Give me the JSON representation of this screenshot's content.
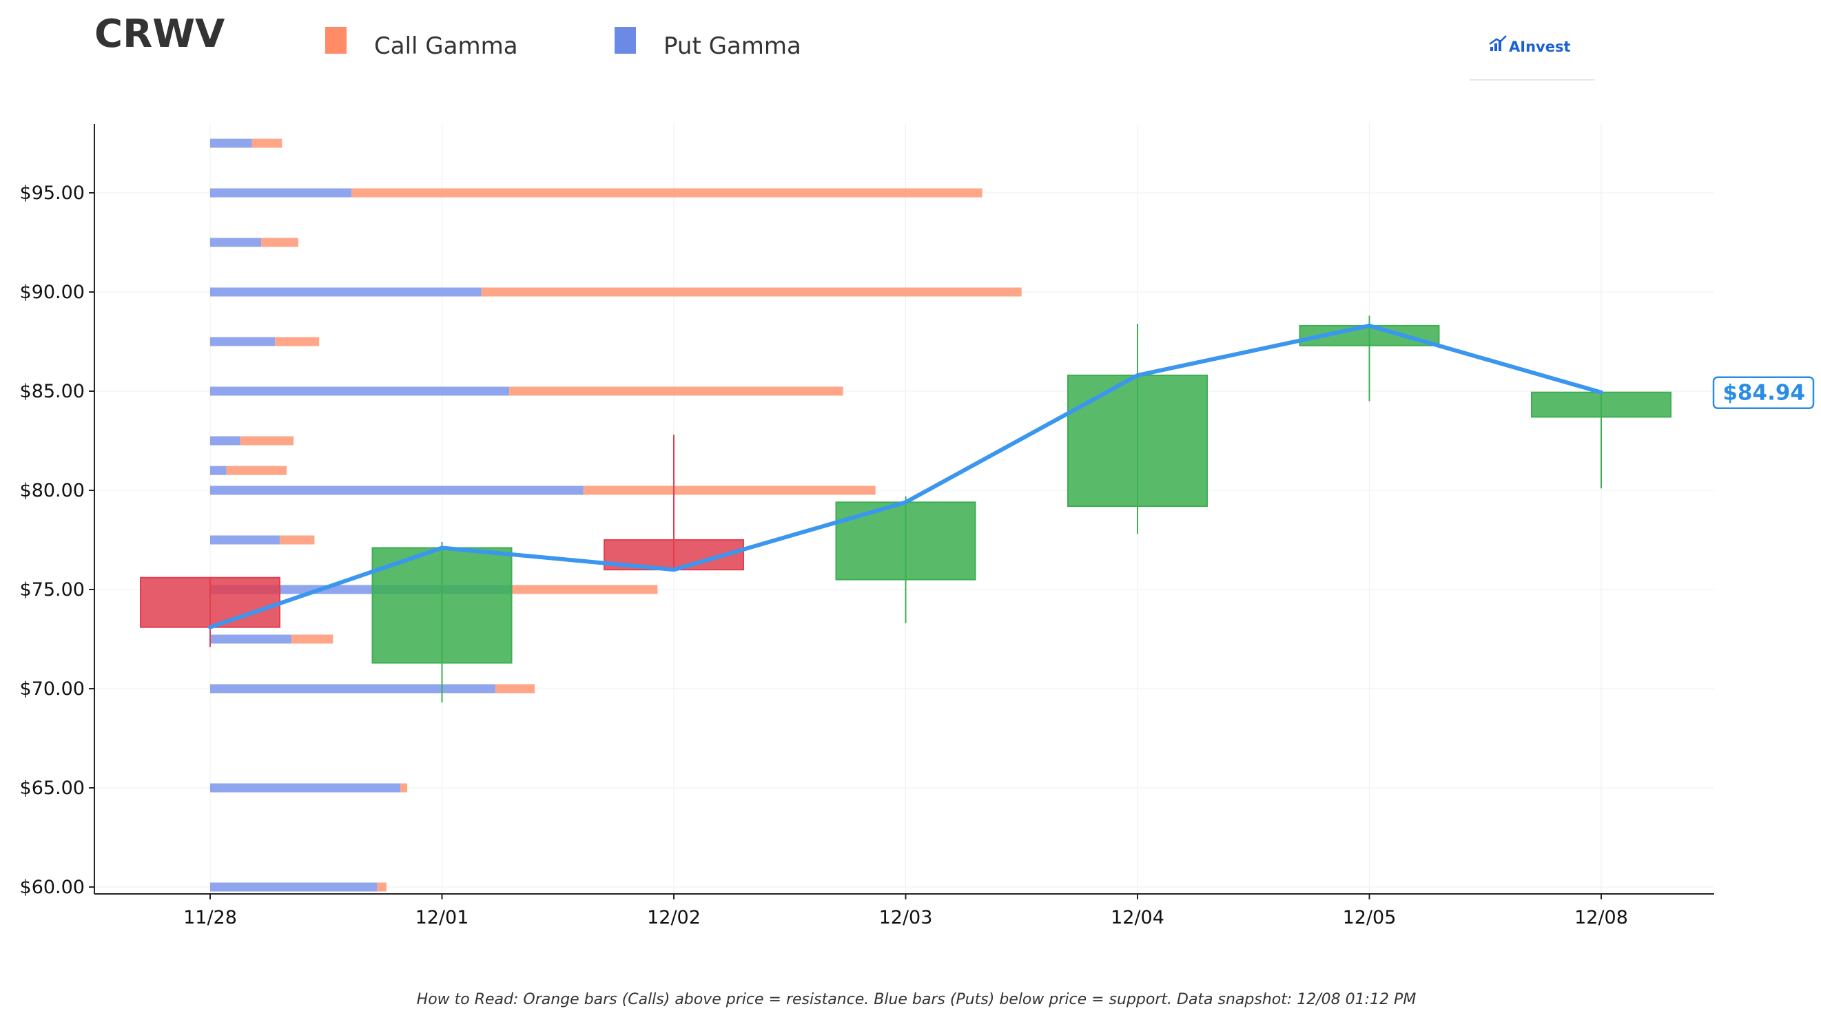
{
  "header": {
    "title": "CRWV",
    "logo_text": "AInvest"
  },
  "legend": [
    {
      "label": "Call Gamma",
      "color": "#ff8c66"
    },
    {
      "label": "Put Gamma",
      "color": "#6b8ae6"
    }
  ],
  "footer": {
    "note": "How to Read: Orange bars (Calls) above price = resistance. Blue bars (Puts) below price = support. Data snapshot: 12/08 01:12 PM"
  },
  "price_label": "$84.94",
  "colors": {
    "up": "#3caf50",
    "down": "#e04050",
    "price_line": "#3a96ee",
    "call": "#ff9a78",
    "put": "#8099ea"
  },
  "chart_data": {
    "type": "candlestick",
    "x_categories": [
      "11/28",
      "12/01",
      "12/02",
      "12/03",
      "12/04",
      "12/05",
      "12/08"
    ],
    "y_ticks": [
      60,
      65,
      70,
      75,
      80,
      85,
      90,
      95
    ],
    "y_tick_labels": [
      "$60.00",
      "$65.00",
      "$70.00",
      "$75.00",
      "$80.00",
      "$85.00",
      "$90.00",
      "$95.00"
    ],
    "ylim": [
      59.7,
      98.6
    ],
    "candles": [
      {
        "date": "11/28",
        "open": 75.6,
        "high": 75.6,
        "low": 72.1,
        "close": 73.1
      },
      {
        "date": "12/01",
        "open": 71.3,
        "high": 77.4,
        "low": 69.3,
        "close": 77.1
      },
      {
        "date": "12/02",
        "open": 77.5,
        "high": 82.8,
        "low": 76.0,
        "close": 76.0
      },
      {
        "date": "12/03",
        "open": 75.5,
        "high": 79.7,
        "low": 73.3,
        "close": 79.4
      },
      {
        "date": "12/04",
        "open": 79.2,
        "high": 88.4,
        "low": 77.8,
        "close": 85.8
      },
      {
        "date": "12/05",
        "open": 87.3,
        "high": 88.8,
        "low": 84.5,
        "close": 88.3
      },
      {
        "date": "12/08",
        "open": 83.7,
        "high": 85.0,
        "low": 80.1,
        "close": 84.94
      }
    ],
    "price_line": [
      73.1,
      77.1,
      76.0,
      79.4,
      85.8,
      88.3,
      84.94
    ],
    "gamma_scale": {
      "put_per_x": 1.0,
      "note": "bar lengths in x-category units"
    },
    "gamma": [
      {
        "strike": 97.5,
        "put": 0.18,
        "call": 0.13
      },
      {
        "strike": 95.0,
        "put": 0.61,
        "call": 2.72
      },
      {
        "strike": 92.5,
        "put": 0.22,
        "call": 0.16
      },
      {
        "strike": 90.0,
        "put": 1.17,
        "call": 2.33
      },
      {
        "strike": 87.5,
        "put": 0.28,
        "call": 0.19
      },
      {
        "strike": 85.0,
        "put": 1.29,
        "call": 1.44
      },
      {
        "strike": 82.5,
        "put": 0.13,
        "call": 0.23
      },
      {
        "strike": 81.0,
        "put": 0.07,
        "call": 0.26
      },
      {
        "strike": 80.0,
        "put": 1.61,
        "call": 1.26
      },
      {
        "strike": 77.5,
        "put": 0.3,
        "call": 0.15
      },
      {
        "strike": 75.0,
        "put": 1.3,
        "call": 0.63
      },
      {
        "strike": 72.5,
        "put": 0.35,
        "call": 0.18
      },
      {
        "strike": 70.0,
        "put": 1.23,
        "call": 0.17
      },
      {
        "strike": 65.0,
        "put": 0.82,
        "call": 0.03
      },
      {
        "strike": 60.0,
        "put": 0.72,
        "call": 0.04
      }
    ]
  }
}
